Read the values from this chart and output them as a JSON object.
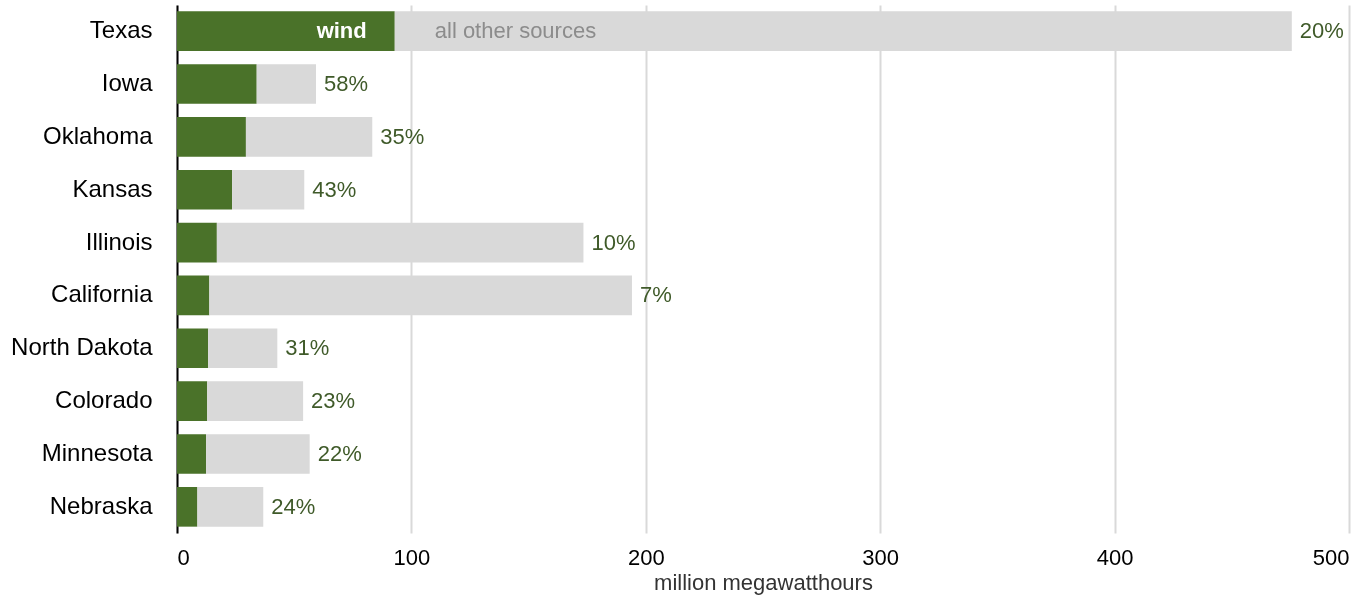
{
  "chart_data": {
    "type": "bar",
    "orientation": "horizontal",
    "stacked": true,
    "categories": [
      "Texas",
      "Iowa",
      "Oklahoma",
      "Kansas",
      "Illinois",
      "California",
      "North Dakota",
      "Colorado",
      "Minnesota",
      "Nebraska"
    ],
    "series": [
      {
        "name": "wind",
        "color": "#4a7229",
        "values": [
          92.9,
          34.0,
          29.4,
          23.5,
          17.0,
          13.8,
          13.3,
          12.9,
          12.4,
          8.7
        ]
      },
      {
        "name": "all other sources",
        "color": "#d9d9d9",
        "values": [
          382.7,
          25.3,
          53.9,
          30.8,
          156.4,
          180.3,
          29.5,
          40.9,
          44.2,
          28.1
        ]
      }
    ],
    "xlabel": "million megawatthours",
    "xlim": [
      0,
      500
    ],
    "xticks": [
      0,
      100,
      200,
      300,
      400,
      500
    ],
    "grid": "x",
    "legend": false,
    "annotations": [
      {
        "text": "20%",
        "x": 475.6,
        "y": "Texas"
      },
      {
        "text": "58%",
        "x": 59.3,
        "y": "Iowa"
      },
      {
        "text": "35%",
        "x": 83.3,
        "y": "Oklahoma"
      },
      {
        "text": "43%",
        "x": 54.3,
        "y": "Kansas"
      },
      {
        "text": "10%",
        "x": 173.4,
        "y": "Illinois"
      },
      {
        "text": "7%",
        "x": 194.1,
        "y": "California"
      },
      {
        "text": "31%",
        "x": 42.8,
        "y": "North Dakota"
      },
      {
        "text": "23%",
        "x": 53.8,
        "y": "Colorado"
      },
      {
        "text": "22%",
        "x": 56.6,
        "y": "Minnesota"
      },
      {
        "text": "24%",
        "x": 36.8,
        "y": "Nebraska"
      }
    ]
  }
}
